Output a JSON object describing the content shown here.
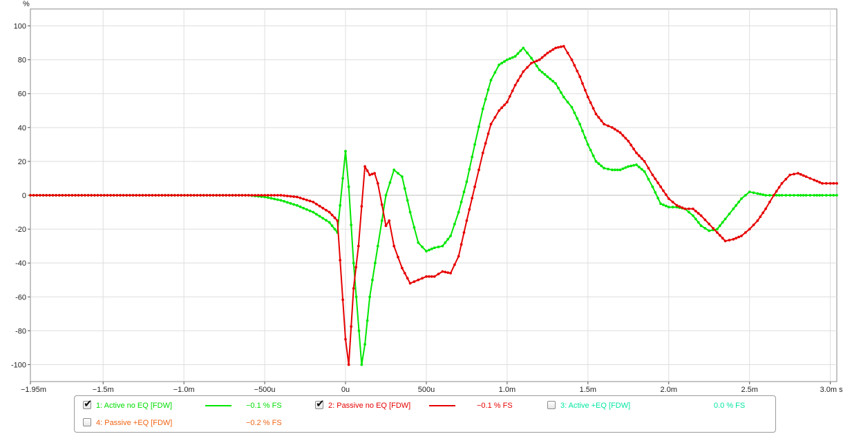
{
  "chart_data": {
    "type": "line",
    "ylabel": "%",
    "xunit": "s",
    "ylim": [
      -110,
      110
    ],
    "xlim": [
      -1.95,
      3.04
    ],
    "yticks": [
      100,
      80,
      60,
      40,
      20,
      0,
      -20,
      -40,
      -60,
      -80,
      -100
    ],
    "xticks": [
      {
        "value": -1.95,
        "label": "−1.95m"
      },
      {
        "value": -1.5,
        "label": "−1.5m"
      },
      {
        "value": -1.0,
        "label": "−1.0m"
      },
      {
        "value": -0.5,
        "label": "−500u"
      },
      {
        "value": 0.0,
        "label": "0u"
      },
      {
        "value": 0.5,
        "label": "500u"
      },
      {
        "value": 1.0,
        "label": "1.0m"
      },
      {
        "value": 1.5,
        "label": "1.5m"
      },
      {
        "value": 2.0,
        "label": "2.0m"
      },
      {
        "value": 2.5,
        "label": "2.5m"
      },
      {
        "value": 3.0,
        "label": "3.0m s"
      }
    ],
    "grid": true,
    "legend_position": "bottom",
    "series": [
      {
        "name": "1: Active no EQ [FDW]",
        "color": "#00e600",
        "x": [
          -1.95,
          -0.6,
          -0.5,
          -0.4,
          -0.3,
          -0.2,
          -0.1,
          -0.05,
          0.0,
          0.02,
          0.05,
          0.1,
          0.12,
          0.15,
          0.2,
          0.25,
          0.3,
          0.35,
          0.4,
          0.45,
          0.5,
          0.55,
          0.6,
          0.65,
          0.7,
          0.75,
          0.8,
          0.85,
          0.9,
          0.95,
          1.0,
          1.05,
          1.1,
          1.15,
          1.2,
          1.25,
          1.3,
          1.35,
          1.4,
          1.45,
          1.5,
          1.55,
          1.6,
          1.65,
          1.7,
          1.75,
          1.8,
          1.85,
          1.9,
          1.95,
          2.0,
          2.05,
          2.1,
          2.15,
          2.2,
          2.25,
          2.3,
          2.35,
          2.4,
          2.45,
          2.5,
          2.55,
          2.6,
          2.65,
          2.7,
          2.75,
          2.8,
          2.85,
          2.9,
          2.95,
          3.0,
          3.04
        ],
        "y": [
          0,
          0,
          -1,
          -3,
          -6,
          -10,
          -16,
          -22,
          26,
          5,
          -40,
          -100,
          -88,
          -60,
          -30,
          0,
          15,
          11,
          -10,
          -28,
          -33,
          -31,
          -30,
          -24,
          -10,
          8,
          30,
          51,
          68,
          77,
          80,
          82,
          87,
          81,
          74,
          70,
          66,
          58,
          52,
          42,
          30,
          20,
          16,
          15,
          15,
          17,
          18,
          14,
          5,
          -5,
          -7,
          -7,
          -8,
          -12,
          -18,
          -21,
          -20,
          -14,
          -8,
          -2,
          2,
          1,
          0,
          0,
          0,
          0,
          0,
          0,
          0,
          0,
          0,
          0
        ]
      },
      {
        "name": "2: Passive no EQ [FDW]",
        "color": "#e60000",
        "x": [
          -1.95,
          -0.6,
          -0.5,
          -0.4,
          -0.3,
          -0.2,
          -0.1,
          -0.05,
          0.0,
          0.02,
          0.05,
          0.08,
          0.12,
          0.15,
          0.18,
          0.2,
          0.25,
          0.27,
          0.3,
          0.35,
          0.4,
          0.45,
          0.5,
          0.55,
          0.6,
          0.65,
          0.7,
          0.75,
          0.8,
          0.85,
          0.9,
          0.95,
          1.0,
          1.05,
          1.1,
          1.15,
          1.2,
          1.25,
          1.3,
          1.35,
          1.4,
          1.45,
          1.5,
          1.55,
          1.6,
          1.65,
          1.7,
          1.75,
          1.8,
          1.85,
          1.9,
          1.95,
          2.0,
          2.05,
          2.1,
          2.15,
          2.2,
          2.25,
          2.3,
          2.35,
          2.4,
          2.45,
          2.5,
          2.55,
          2.6,
          2.65,
          2.7,
          2.75,
          2.8,
          2.85,
          2.9,
          2.95,
          3.0,
          3.04
        ],
        "y": [
          0,
          0,
          0,
          0,
          -1,
          -4,
          -10,
          -15,
          -85,
          -100,
          -55,
          -30,
          17,
          12,
          13,
          7,
          -18,
          -15,
          -30,
          -43,
          -52,
          -50,
          -48,
          -48,
          -45,
          -46,
          -36,
          -15,
          5,
          25,
          42,
          50,
          55,
          65,
          73,
          78,
          80,
          84,
          87,
          88,
          80,
          70,
          58,
          48,
          42,
          40,
          37,
          32,
          25,
          20,
          12,
          5,
          -2,
          -6,
          -8,
          -8,
          -12,
          -17,
          -22,
          -27,
          -26,
          -24,
          -20,
          -15,
          -8,
          0,
          7,
          12,
          13,
          11,
          9,
          7,
          7,
          7
        ]
      },
      {
        "name": "3: Active +EQ [FDW]",
        "color": "#00e6a0"
      },
      {
        "name": "4: Passive +EQ [FDW]",
        "color": "#f06414"
      }
    ]
  },
  "legend": {
    "items": [
      {
        "label": "1: Active no EQ [FDW]",
        "value": "−0.1 % FS",
        "checked": true,
        "checkmark": "✔",
        "color": "#00e600"
      },
      {
        "label": "2: Passive no EQ [FDW]",
        "value": "−0.1 % FS",
        "checked": true,
        "checkmark": "✔",
        "color": "#e60000"
      },
      {
        "label": "3: Active +EQ [FDW]",
        "value": "0.0 % FS",
        "checked": false,
        "checkmark": "",
        "color": "#00e6a0"
      },
      {
        "label": "4: Passive +EQ [FDW]",
        "value": "−0.2 % FS",
        "checked": false,
        "checkmark": "",
        "color": "#f06414"
      }
    ]
  }
}
